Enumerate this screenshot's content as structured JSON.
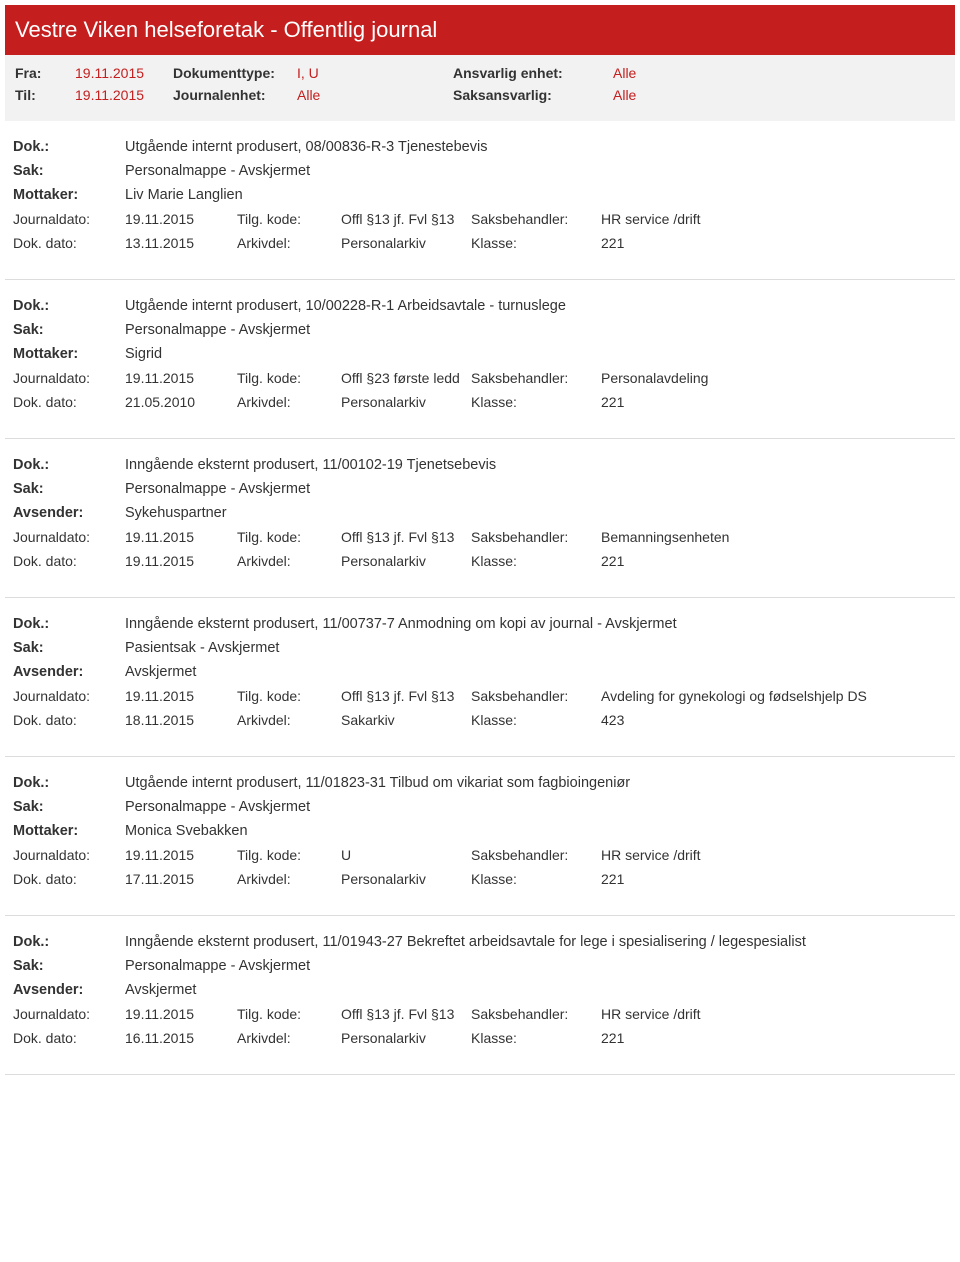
{
  "header": {
    "title": "Vestre Viken helseforetak - Offentlig journal"
  },
  "meta": {
    "fra_label": "Fra:",
    "fra_value": "19.11.2015",
    "til_label": "Til:",
    "til_value": "19.11.2015",
    "doktype_label": "Dokumenttype:",
    "doktype_value": "I, U",
    "journalenhet_label": "Journalenhet:",
    "journalenhet_value": "Alle",
    "ansvarlig_label": "Ansvarlig enhet:",
    "ansvarlig_value": "Alle",
    "saksansvarlig_label": "Saksansvarlig:",
    "saksansvarlig_value": "Alle"
  },
  "labels": {
    "dok": "Dok.:",
    "sak": "Sak:",
    "mottaker": "Mottaker:",
    "avsender": "Avsender:",
    "journaldato": "Journaldato:",
    "dokdato": "Dok. dato:",
    "tilgkode": "Tilg. kode:",
    "arkivdel": "Arkivdel:",
    "saksbehandler": "Saksbehandler:",
    "klasse": "Klasse:"
  },
  "entries": [
    {
      "dok": "Utgående internt produsert, 08/00836-R-3 Tjenestebevis",
      "sak": "Personalmappe - Avskjermet",
      "party_label": "Mottaker:",
      "party": "Liv Marie Langlien",
      "journaldato": "19.11.2015",
      "tilgkode": "Offl §13 jf. Fvl §13",
      "saksbehandler": "HR service /drift",
      "dokdato": "13.11.2015",
      "arkivdel": "Personalarkiv",
      "klasse": "221"
    },
    {
      "dok": "Utgående internt produsert, 10/00228-R-1 Arbeidsavtale - turnuslege",
      "sak": "Personalmappe - Avskjermet",
      "party_label": "Mottaker:",
      "party": "Sigrid",
      "journaldato": "19.11.2015",
      "tilgkode": "Offl §23 første ledd",
      "saksbehandler": "Personalavdeling",
      "dokdato": "21.05.2010",
      "arkivdel": "Personalarkiv",
      "klasse": "221"
    },
    {
      "dok": "Inngående eksternt produsert, 11/00102-19 Tjenetsebevis",
      "sak": "Personalmappe - Avskjermet",
      "party_label": "Avsender:",
      "party": "Sykehuspartner",
      "journaldato": "19.11.2015",
      "tilgkode": "Offl §13 jf. Fvl §13",
      "saksbehandler": "Bemanningsenheten",
      "dokdato": "19.11.2015",
      "arkivdel": "Personalarkiv",
      "klasse": "221"
    },
    {
      "dok": "Inngående eksternt produsert, 11/00737-7 Anmodning om kopi av journal - Avskjermet",
      "sak": "Pasientsak - Avskjermet",
      "party_label": "Avsender:",
      "party": "Avskjermet",
      "journaldato": "19.11.2015",
      "tilgkode": "Offl §13 jf. Fvl §13",
      "saksbehandler": "Avdeling for gynekologi og fødselshjelp DS",
      "dokdato": "18.11.2015",
      "arkivdel": "Sakarkiv",
      "klasse": "423"
    },
    {
      "dok": "Utgående internt produsert, 11/01823-31 Tilbud om vikariat som fagbioingeniør",
      "sak": "Personalmappe - Avskjermet",
      "party_label": "Mottaker:",
      "party": "Monica Svebakken",
      "journaldato": "19.11.2015",
      "tilgkode": "U",
      "saksbehandler": "HR service /drift",
      "dokdato": "17.11.2015",
      "arkivdel": "Personalarkiv",
      "klasse": "221"
    },
    {
      "dok": "Inngående eksternt produsert, 11/01943-27 Bekreftet arbeidsavtale for lege i spesialisering / legespesialist",
      "sak": "Personalmappe - Avskjermet",
      "party_label": "Avsender:",
      "party": "Avskjermet",
      "journaldato": "19.11.2015",
      "tilgkode": "Offl §13 jf. Fvl §13",
      "saksbehandler": "HR service /drift",
      "dokdato": "16.11.2015",
      "arkivdel": "Personalarkiv",
      "klasse": "221"
    }
  ]
}
